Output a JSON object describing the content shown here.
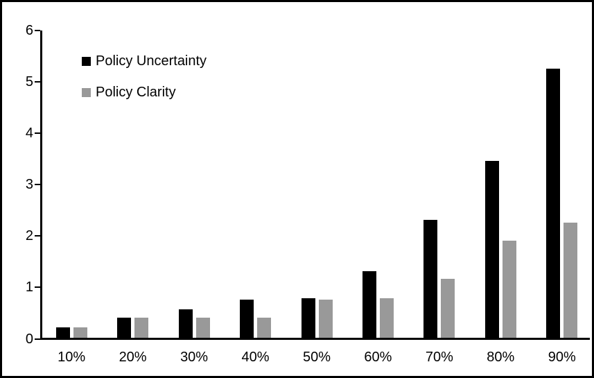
{
  "chart_data": {
    "type": "bar",
    "categories": [
      "10%",
      "20%",
      "30%",
      "40%",
      "50%",
      "60%",
      "70%",
      "80%",
      "90%"
    ],
    "series": [
      {
        "name": "Policy Uncertainty",
        "color": "#000000",
        "values": [
          0.2,
          0.4,
          0.55,
          0.75,
          0.77,
          1.3,
          2.3,
          3.45,
          5.25
        ]
      },
      {
        "name": "Policy Clarity",
        "color": "#999999",
        "values": [
          0.2,
          0.4,
          0.4,
          0.4,
          0.75,
          0.77,
          1.15,
          1.9,
          2.25
        ]
      }
    ],
    "title": "",
    "xlabel": "",
    "ylabel": "",
    "ylim": [
      0,
      6
    ],
    "yticks": [
      "0",
      "1",
      "2",
      "3",
      "4",
      "5",
      "6"
    ],
    "grid": false,
    "legend_position": "top-left-inside",
    "frame_border_color": "#000000",
    "background_color": "#ffffff"
  }
}
